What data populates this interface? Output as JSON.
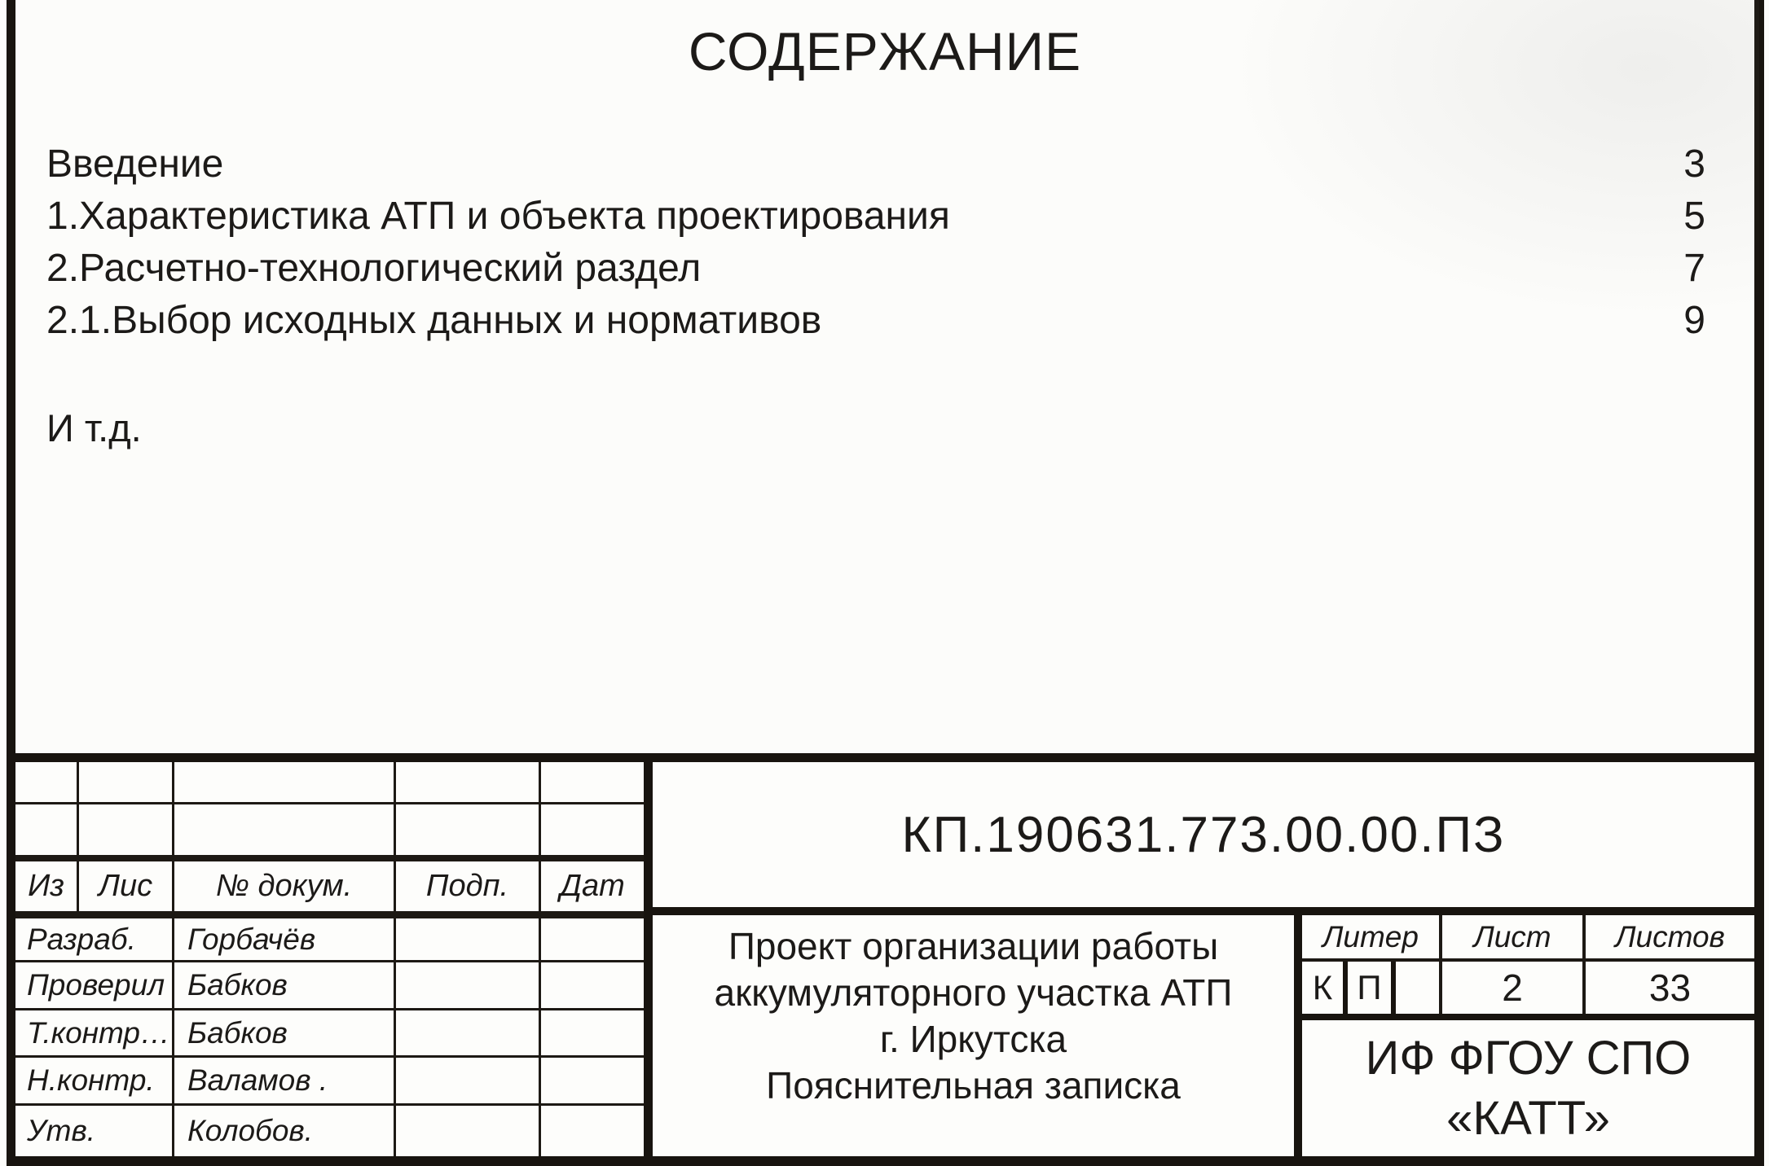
{
  "document": {
    "title": "СОДЕРЖАНИЕ",
    "etc_note": "И т.д."
  },
  "toc": {
    "items": [
      {
        "label": "Введение",
        "page": "3"
      },
      {
        "label": "1.Характеристика АТП и объекта проектирования",
        "page": "5"
      },
      {
        "label": "2.Расчетно-технологический раздел",
        "page": "7"
      },
      {
        "label": "2.1.Выбор исходных данных и нормативов",
        "page": "9"
      }
    ]
  },
  "title_block": {
    "doc_number": "КП.190631.773.00.00.ПЗ",
    "header_columns": {
      "izm": "Из",
      "list": "Лис",
      "doc_no": "№ докум.",
      "sign": "Подп.",
      "date": "Дат"
    },
    "signatures": [
      {
        "role": "Разраб.",
        "name": "Горбачёв"
      },
      {
        "role": "Проверил",
        "name": "Бабков"
      },
      {
        "role": "Т.контр…",
        "name": "Бабков"
      },
      {
        "role": "Н.контр.",
        "name": "Валамов ."
      },
      {
        "role": "Утв.",
        "name": "Колобов."
      }
    ],
    "project_title": {
      "line1": "Проект организации работы",
      "line2": "аккумуляторного участка АТП",
      "line3": "г. Иркутска",
      "line4": "Пояснительная записка"
    },
    "liter": {
      "label": "Литер",
      "value1": "К",
      "value2": "П"
    },
    "sheet": {
      "label": "Лист",
      "value": "2"
    },
    "sheets_total": {
      "label": "Листов",
      "value": "33"
    },
    "organization": {
      "line1": "ИФ ФГОУ СПО",
      "line2": "«КАТТ»"
    }
  },
  "colors": {
    "ink": "#1c1a18",
    "paper": "#fcfcfa",
    "line": "#18140f"
  }
}
